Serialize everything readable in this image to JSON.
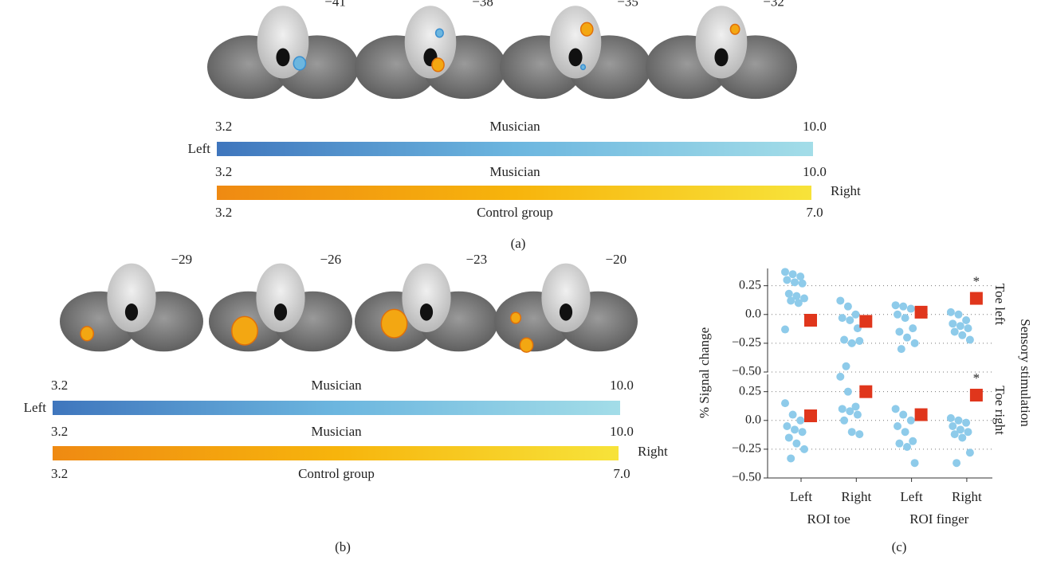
{
  "panel_a": {
    "slices": [
      "−41",
      "−38",
      "−35",
      "−32"
    ],
    "left_label": "Left",
    "right_label": "Right",
    "colorbars": [
      {
        "min": "3.2",
        "label": "Musician",
        "max": "10.0"
      },
      {
        "min": "3.2",
        "label": "Musician",
        "max": "10.0"
      },
      {
        "min": "3.2",
        "label": "Control group",
        "max": "7.0"
      }
    ],
    "caption": "(a)"
  },
  "panel_b": {
    "slices": [
      "−29",
      "−26",
      "−23",
      "−20"
    ],
    "left_label": "Left",
    "right_label": "Right",
    "colorbars": [
      {
        "min": "3.2",
        "label": "Musician",
        "max": "10.0"
      },
      {
        "min": "3.2",
        "label": "Musician",
        "max": "10.0"
      },
      {
        "min": "3.2",
        "label": "Control group",
        "max": "7.0"
      }
    ],
    "caption": "(b)"
  },
  "chart_data": {
    "type": "scatter",
    "y_label": "% Signal change",
    "side_label": "Sensory stimulation",
    "categories": [
      "Left",
      "Right",
      "Left",
      "Right"
    ],
    "groups": [
      "ROI toe",
      "ROI finger"
    ],
    "ylim": [
      -0.5,
      0.4
    ],
    "yticks": [
      0.25,
      {
        "value": 0,
        "label": "0.0"
      },
      {
        "value": -0.25,
        "label": "−0.25"
      },
      {
        "value": -0.5,
        "label": "−0.50"
      }
    ],
    "grid": true,
    "point_color": "#8ecbea",
    "mean_color": "#e0361c",
    "facets": [
      {
        "label": "Toe left",
        "points": [
          [
            0.37,
            0.35,
            0.33,
            0.3,
            0.28,
            0.27,
            0.18,
            0.16,
            0.14,
            0.12,
            0.1,
            -0.13
          ],
          [
            0.12,
            0.07,
            0.0,
            -0.03,
            -0.05,
            -0.12,
            -0.22,
            -0.25,
            -0.23,
            -0.45
          ],
          [
            0.08,
            0.07,
            0.05,
            0.0,
            -0.03,
            -0.12,
            -0.15,
            -0.2,
            -0.25,
            -0.3
          ],
          [
            0.02,
            0.0,
            -0.05,
            -0.08,
            -0.1,
            -0.12,
            -0.15,
            -0.18,
            -0.22
          ]
        ],
        "means": [
          -0.05,
          -0.06,
          0.02,
          0.14
        ],
        "mean_labels": [
          null,
          null,
          null,
          "*"
        ]
      },
      {
        "label": "Toe right",
        "points": [
          [
            0.15,
            0.05,
            0.0,
            -0.05,
            -0.08,
            -0.1,
            -0.15,
            -0.2,
            -0.25,
            -0.33
          ],
          [
            0.38,
            0.25,
            0.12,
            0.1,
            0.08,
            0.05,
            0.0,
            -0.1,
            -0.12
          ],
          [
            0.1,
            0.05,
            0.0,
            -0.05,
            -0.1,
            -0.18,
            -0.2,
            -0.23,
            -0.37
          ],
          [
            0.02,
            0.0,
            -0.02,
            -0.05,
            -0.08,
            -0.1,
            -0.12,
            -0.15,
            -0.28,
            -0.37
          ]
        ],
        "means": [
          0.04,
          0.25,
          0.05,
          0.22
        ],
        "mean_labels": [
          null,
          null,
          null,
          "*"
        ]
      }
    ]
  }
}
